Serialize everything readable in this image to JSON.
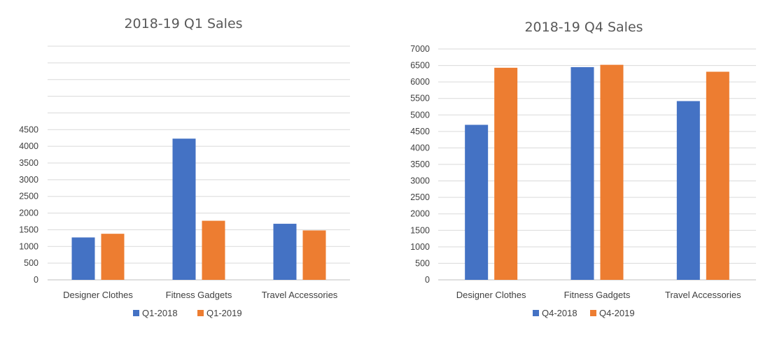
{
  "chart_data": [
    {
      "type": "bar",
      "title": "2018-19 Q1 Sales",
      "categories": [
        "Designer Clothes",
        "Fitness Gadgets",
        "Travel Accessories"
      ],
      "series": [
        {
          "name": "Q1-2018",
          "color": "#4472c4",
          "values": [
            1270,
            4230,
            1680
          ]
        },
        {
          "name": "Q1-2019",
          "color": "#ed7d31",
          "values": [
            1380,
            1770,
            1480
          ]
        }
      ],
      "yticks": [
        0,
        500,
        1000,
        1500,
        2000,
        2500,
        3000,
        3500,
        4000,
        4500
      ],
      "ylim": [
        0,
        7000
      ],
      "grid": true,
      "legend": "bottom"
    },
    {
      "type": "bar",
      "title": "2018-19 Q4 Sales",
      "categories": [
        "Designer Clothes",
        "Fitness Gadgets",
        "Travel Accessories"
      ],
      "series": [
        {
          "name": "Q4-2018",
          "color": "#4472c4",
          "values": [
            4700,
            6450,
            5420
          ]
        },
        {
          "name": "Q4-2019",
          "color": "#ed7d31",
          "values": [
            6430,
            6520,
            6310
          ]
        }
      ],
      "yticks": [
        0,
        500,
        1000,
        1500,
        2000,
        2500,
        3000,
        3500,
        4000,
        4500,
        5000,
        5500,
        6000,
        6500,
        7000
      ],
      "ylim": [
        0,
        7000
      ],
      "grid": true,
      "legend": "bottom"
    }
  ]
}
